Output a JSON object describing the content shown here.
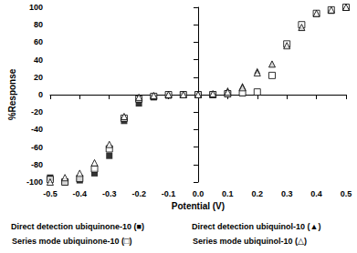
{
  "chart_data": {
    "type": "scatter",
    "x_label": "Potential (V)",
    "y_label": "%Response",
    "x": [
      -0.5,
      -0.45,
      -0.4,
      -0.35,
      -0.3,
      -0.25,
      -0.2,
      -0.15,
      -0.1,
      -0.05,
      0.0,
      0.05,
      0.1,
      0.15,
      0.2,
      0.25,
      0.3,
      0.35,
      0.4,
      0.45,
      0.5
    ],
    "series": [
      {
        "name": "Direct detection ubiquinone-10 (■)",
        "color": "#000000",
        "marker": "square",
        "values": [
          -95,
          -100,
          -98,
          -90,
          -70,
          -30,
          -10,
          -3,
          -1,
          0,
          0,
          0,
          1,
          null,
          null,
          null,
          null,
          null,
          null,
          null,
          null
        ]
      },
      {
        "name": "Direct detection ubiquinol-10 (▲)",
        "color": "#000000",
        "marker": "triangle",
        "values": [
          null,
          null,
          null,
          null,
          null,
          null,
          null,
          null,
          null,
          null,
          0,
          1,
          5,
          10,
          27,
          35,
          57,
          77,
          93,
          96,
          100
        ]
      },
      {
        "name": "Series mode ubiquinone-10 (□)",
        "color": "#000000",
        "marker": "square-open",
        "values": [
          -97,
          -100,
          -96,
          -85,
          -62,
          -27,
          -5,
          -2,
          0,
          0,
          0,
          0,
          1,
          2,
          3,
          22,
          58,
          80,
          93,
          97,
          100
        ]
      },
      {
        "name": "Series mode ubiquinol-10 (△)",
        "color": "#000000",
        "marker": "triangle-open",
        "values": [
          -100,
          -95,
          -90,
          -78,
          -57,
          -25,
          -3,
          -1,
          0,
          0,
          0,
          1,
          3,
          8,
          25,
          35,
          56,
          77,
          93,
          97,
          100
        ]
      }
    ],
    "xlim": [
      -0.5,
      0.5
    ],
    "xticks": [
      -0.5,
      -0.4,
      -0.3,
      -0.2,
      -0.1,
      {
        "value": 0,
        "label": "0.0"
      },
      0.1,
      0.2,
      0.3,
      0.4,
      0.5
    ],
    "ylim": [
      -100,
      100
    ],
    "yticks": [
      -100,
      -80,
      -60,
      -40,
      -20,
      0,
      20,
      40,
      60,
      80,
      100
    ],
    "grid": false
  }
}
